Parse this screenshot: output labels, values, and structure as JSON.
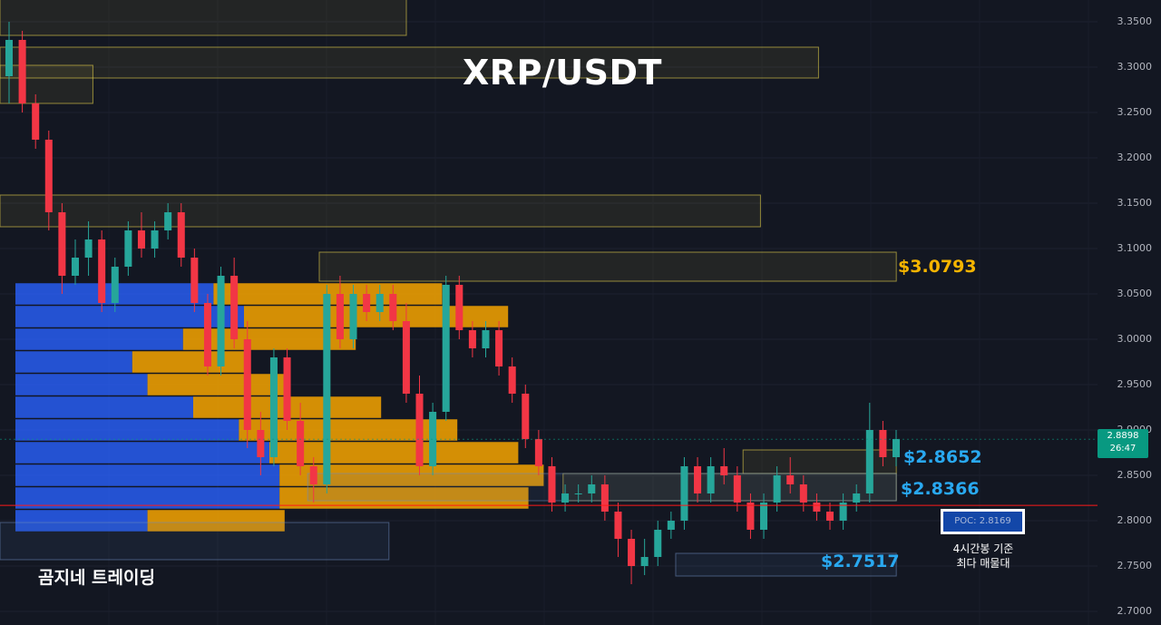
{
  "title": "XRP/USDT",
  "watermark": "곰지네 트레이딩",
  "colors": {
    "background": "#131722",
    "up": "#26a69a",
    "down": "#f23645",
    "zone_yellow": "#e6d24a",
    "zone_blue": "#4a6fa5",
    "poc_line": "#ff1a1a",
    "vp_blue": "#2962ff",
    "vp_orange": "#f7a400",
    "label_gold": "#f5b400",
    "label_blue": "#29a8f0"
  },
  "levels": {
    "resistance": "$3.0793",
    "support_1": "$2.8652",
    "support_2": "$2.8366",
    "support_3": "$2.7517"
  },
  "current_price": {
    "price": "2.8898",
    "countdown": "26:47"
  },
  "poc": {
    "label": "POC: 2.8169",
    "note_line1": "4시간봉 기준",
    "note_line2": "최다 매물대"
  },
  "chart_data": {
    "type": "candlestick",
    "y_axis": {
      "range": [
        2.69,
        3.37
      ],
      "ticks": [
        "3.3500",
        "3.3000",
        "3.2500",
        "3.2000",
        "3.1500",
        "3.1000",
        "3.0500",
        "3.0000",
        "2.9500",
        "2.9000",
        "2.8500",
        "2.8000",
        "2.7500",
        "2.7000"
      ]
    },
    "poc_price": 2.8169,
    "zones": [
      {
        "color": "yellow",
        "low": 3.335,
        "high": 3.405,
        "start": 0,
        "end": 0.35
      },
      {
        "color": "yellow",
        "low": 3.288,
        "high": 3.322,
        "start": 0,
        "end": 0.705
      },
      {
        "color": "yellow",
        "low": 3.26,
        "high": 3.302,
        "start": 0,
        "end": 0.08
      },
      {
        "color": "yellow",
        "low": 3.124,
        "high": 3.159,
        "start": 0,
        "end": 0.655
      },
      {
        "color": "yellow",
        "low": 3.064,
        "high": 3.096,
        "start": 0.275,
        "end": 0.772,
        "label": "$3.0793"
      },
      {
        "color": "yellow",
        "low": 2.852,
        "high": 2.878,
        "start": 0.64,
        "end": 0.772,
        "label": "$2.8652"
      },
      {
        "color": "yellow",
        "low": 2.822,
        "high": 2.852,
        "start": 0.485,
        "end": 0.772
      },
      {
        "color": "blue",
        "low": 2.822,
        "high": 2.852,
        "start": 0.265,
        "end": 0.772,
        "label": "$2.8366"
      },
      {
        "color": "blue",
        "low": 2.739,
        "high": 2.764,
        "start": 0.582,
        "end": 0.772,
        "label": "$2.7517"
      },
      {
        "color": "blue",
        "low": 2.757,
        "high": 2.798,
        "start": 0,
        "end": 0.335
      }
    ],
    "volume_profile": [
      {
        "price": 3.05,
        "buy": 0.39,
        "sell": 0.45
      },
      {
        "price": 3.025,
        "buy": 0.45,
        "sell": 0.52
      },
      {
        "price": 3.0,
        "buy": 0.33,
        "sell": 0.34
      },
      {
        "price": 2.975,
        "buy": 0.23,
        "sell": 0.23
      },
      {
        "price": 2.95,
        "buy": 0.26,
        "sell": 0.27
      },
      {
        "price": 2.925,
        "buy": 0.35,
        "sell": 0.37
      },
      {
        "price": 2.9,
        "buy": 0.44,
        "sell": 0.43
      },
      {
        "price": 2.875,
        "buy": 0.5,
        "sell": 0.49
      },
      {
        "price": 2.85,
        "buy": 0.52,
        "sell": 0.52
      },
      {
        "price": 2.825,
        "buy": 0.52,
        "sell": 0.49
      },
      {
        "price": 2.8,
        "buy": 0.26,
        "sell": 0.27
      }
    ],
    "candles": [
      {
        "o": 3.29,
        "h": 3.35,
        "l": 3.26,
        "c": 3.33
      },
      {
        "o": 3.33,
        "h": 3.34,
        "l": 3.25,
        "c": 3.26
      },
      {
        "o": 3.26,
        "h": 3.27,
        "l": 3.21,
        "c": 3.22
      },
      {
        "o": 3.22,
        "h": 3.23,
        "l": 3.12,
        "c": 3.14
      },
      {
        "o": 3.14,
        "h": 3.15,
        "l": 3.05,
        "c": 3.07
      },
      {
        "o": 3.07,
        "h": 3.11,
        "l": 3.06,
        "c": 3.09
      },
      {
        "o": 3.09,
        "h": 3.13,
        "l": 3.07,
        "c": 3.11
      },
      {
        "o": 3.11,
        "h": 3.12,
        "l": 3.03,
        "c": 3.04
      },
      {
        "o": 3.04,
        "h": 3.09,
        "l": 3.03,
        "c": 3.08
      },
      {
        "o": 3.08,
        "h": 3.13,
        "l": 3.07,
        "c": 3.12
      },
      {
        "o": 3.12,
        "h": 3.14,
        "l": 3.09,
        "c": 3.1
      },
      {
        "o": 3.1,
        "h": 3.13,
        "l": 3.09,
        "c": 3.12
      },
      {
        "o": 3.12,
        "h": 3.15,
        "l": 3.11,
        "c": 3.14
      },
      {
        "o": 3.14,
        "h": 3.15,
        "l": 3.08,
        "c": 3.09
      },
      {
        "o": 3.09,
        "h": 3.1,
        "l": 3.03,
        "c": 3.04
      },
      {
        "o": 3.04,
        "h": 3.05,
        "l": 2.96,
        "c": 2.97
      },
      {
        "o": 2.97,
        "h": 3.08,
        "l": 2.96,
        "c": 3.07
      },
      {
        "o": 3.07,
        "h": 3.09,
        "l": 2.99,
        "c": 3.0
      },
      {
        "o": 3.0,
        "h": 3.02,
        "l": 2.88,
        "c": 2.9
      },
      {
        "o": 2.9,
        "h": 2.92,
        "l": 2.85,
        "c": 2.87
      },
      {
        "o": 2.87,
        "h": 2.99,
        "l": 2.86,
        "c": 2.98
      },
      {
        "o": 2.98,
        "h": 2.99,
        "l": 2.9,
        "c": 2.91
      },
      {
        "o": 2.91,
        "h": 2.93,
        "l": 2.85,
        "c": 2.86
      },
      {
        "o": 2.86,
        "h": 2.87,
        "l": 2.82,
        "c": 2.84
      },
      {
        "o": 2.84,
        "h": 3.06,
        "l": 2.83,
        "c": 3.05
      },
      {
        "o": 3.05,
        "h": 3.07,
        "l": 2.99,
        "c": 3.0
      },
      {
        "o": 3.0,
        "h": 3.06,
        "l": 2.99,
        "c": 3.05
      },
      {
        "o": 3.05,
        "h": 3.06,
        "l": 3.02,
        "c": 3.03
      },
      {
        "o": 3.03,
        "h": 3.06,
        "l": 3.02,
        "c": 3.05
      },
      {
        "o": 3.05,
        "h": 3.06,
        "l": 3.01,
        "c": 3.02
      },
      {
        "o": 3.02,
        "h": 3.04,
        "l": 2.93,
        "c": 2.94
      },
      {
        "o": 2.94,
        "h": 2.96,
        "l": 2.85,
        "c": 2.86
      },
      {
        "o": 2.86,
        "h": 2.93,
        "l": 2.85,
        "c": 2.92
      },
      {
        "o": 2.92,
        "h": 3.07,
        "l": 2.91,
        "c": 3.06
      },
      {
        "o": 3.06,
        "h": 3.07,
        "l": 3.0,
        "c": 3.01
      },
      {
        "o": 3.01,
        "h": 3.02,
        "l": 2.98,
        "c": 2.99
      },
      {
        "o": 2.99,
        "h": 3.02,
        "l": 2.98,
        "c": 3.01
      },
      {
        "o": 3.01,
        "h": 3.02,
        "l": 2.96,
        "c": 2.97
      },
      {
        "o": 2.97,
        "h": 2.98,
        "l": 2.93,
        "c": 2.94
      },
      {
        "o": 2.94,
        "h": 2.95,
        "l": 2.88,
        "c": 2.89
      },
      {
        "o": 2.89,
        "h": 2.9,
        "l": 2.85,
        "c": 2.86
      },
      {
        "o": 2.86,
        "h": 2.87,
        "l": 2.81,
        "c": 2.82
      },
      {
        "o": 2.82,
        "h": 2.84,
        "l": 2.81,
        "c": 2.83
      },
      {
        "o": 2.83,
        "h": 2.84,
        "l": 2.82,
        "c": 2.83
      },
      {
        "o": 2.83,
        "h": 2.85,
        "l": 2.82,
        "c": 2.84
      },
      {
        "o": 2.84,
        "h": 2.85,
        "l": 2.8,
        "c": 2.81
      },
      {
        "o": 2.81,
        "h": 2.82,
        "l": 2.76,
        "c": 2.78
      },
      {
        "o": 2.78,
        "h": 2.79,
        "l": 2.73,
        "c": 2.75
      },
      {
        "o": 2.75,
        "h": 2.78,
        "l": 2.74,
        "c": 2.76
      },
      {
        "o": 2.76,
        "h": 2.8,
        "l": 2.75,
        "c": 2.79
      },
      {
        "o": 2.79,
        "h": 2.81,
        "l": 2.78,
        "c": 2.8
      },
      {
        "o": 2.8,
        "h": 2.87,
        "l": 2.79,
        "c": 2.86
      },
      {
        "o": 2.86,
        "h": 2.87,
        "l": 2.82,
        "c": 2.83
      },
      {
        "o": 2.83,
        "h": 2.87,
        "l": 2.82,
        "c": 2.86
      },
      {
        "o": 2.86,
        "h": 2.88,
        "l": 2.84,
        "c": 2.85
      },
      {
        "o": 2.85,
        "h": 2.86,
        "l": 2.81,
        "c": 2.82
      },
      {
        "o": 2.82,
        "h": 2.83,
        "l": 2.78,
        "c": 2.79
      },
      {
        "o": 2.79,
        "h": 2.83,
        "l": 2.78,
        "c": 2.82
      },
      {
        "o": 2.82,
        "h": 2.86,
        "l": 2.81,
        "c": 2.85
      },
      {
        "o": 2.85,
        "h": 2.87,
        "l": 2.83,
        "c": 2.84
      },
      {
        "o": 2.84,
        "h": 2.85,
        "l": 2.81,
        "c": 2.82
      },
      {
        "o": 2.82,
        "h": 2.83,
        "l": 2.8,
        "c": 2.81
      },
      {
        "o": 2.81,
        "h": 2.82,
        "l": 2.79,
        "c": 2.8
      },
      {
        "o": 2.8,
        "h": 2.83,
        "l": 2.79,
        "c": 2.82
      },
      {
        "o": 2.82,
        "h": 2.84,
        "l": 2.81,
        "c": 2.83
      },
      {
        "o": 2.83,
        "h": 2.93,
        "l": 2.82,
        "c": 2.9
      },
      {
        "o": 2.9,
        "h": 2.91,
        "l": 2.86,
        "c": 2.87
      },
      {
        "o": 2.87,
        "h": 2.9,
        "l": 2.86,
        "c": 2.89
      }
    ]
  }
}
